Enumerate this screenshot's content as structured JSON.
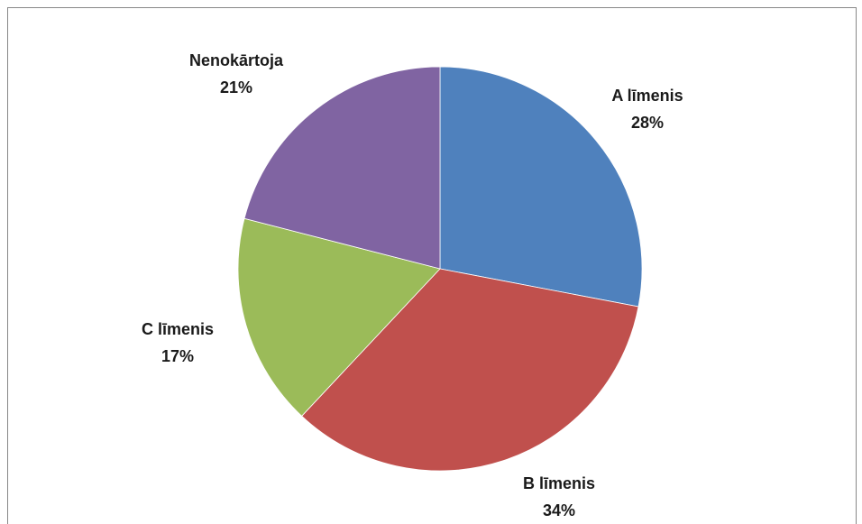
{
  "chart_data": {
    "type": "pie",
    "categories": [
      "A līmenis",
      "B līmenis",
      "C līmenis",
      "Nenokārtoja"
    ],
    "values": [
      28,
      34,
      17,
      21
    ],
    "value_labels": [
      "28%",
      "34%",
      "17%",
      "21%"
    ],
    "colors": [
      "#4f81bd",
      "#c0504d",
      "#9bbb59",
      "#8064a2"
    ]
  }
}
